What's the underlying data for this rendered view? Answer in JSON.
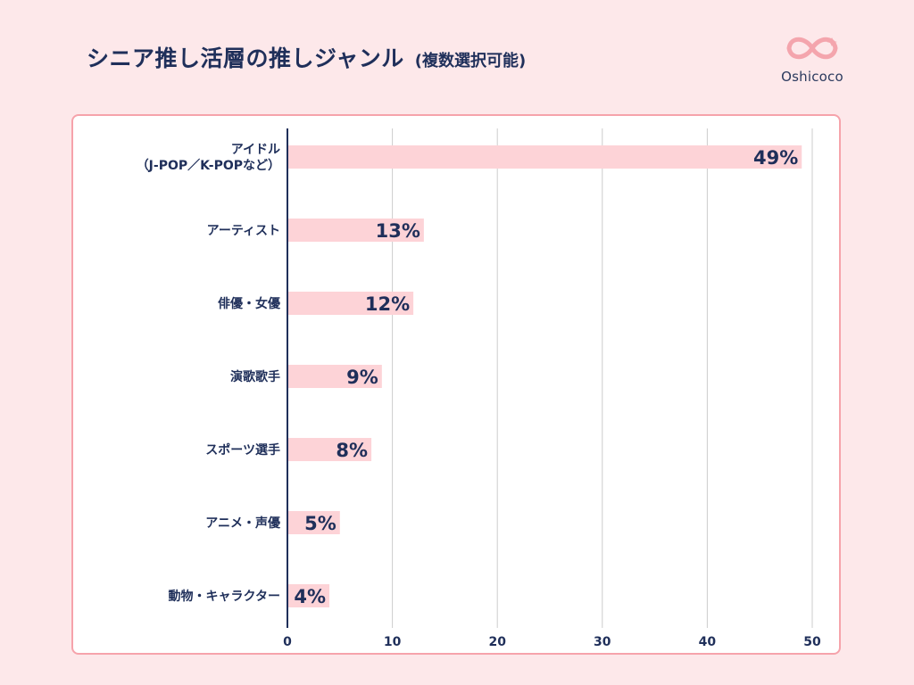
{
  "header": {
    "title": "シニア推し活層の推しジャンル",
    "subtitle": "(複数選択可能)",
    "logo_text": "Oshicoco",
    "logo_icon": "infinity-heart-icon"
  },
  "colors": {
    "background": "#fde8ea",
    "bar": "#fdd3d7",
    "text": "#1f2f5a",
    "panel_border": "#f6a3ab",
    "grid": "#cccccc",
    "axis": "#1f2f5a",
    "logo": "#f4a5ad"
  },
  "chart_data": {
    "type": "bar",
    "orientation": "horizontal",
    "categories": [
      [
        "アイドル",
        "（J-POP／K-POPなど）"
      ],
      [
        "アーティスト"
      ],
      [
        "俳優・女優"
      ],
      [
        "演歌歌手"
      ],
      [
        "スポーツ選手"
      ],
      [
        "アニメ・声優"
      ],
      [
        "動物・キャラクター"
      ]
    ],
    "values": [
      49,
      13,
      12,
      9,
      8,
      5,
      4
    ],
    "value_labels": [
      "49%",
      "13%",
      "12%",
      "9%",
      "8%",
      "5%",
      "4%"
    ],
    "xlim": [
      0,
      50
    ],
    "xticks": [
      0,
      10,
      20,
      30,
      40,
      50
    ],
    "grid": "vertical",
    "legend": "none"
  }
}
